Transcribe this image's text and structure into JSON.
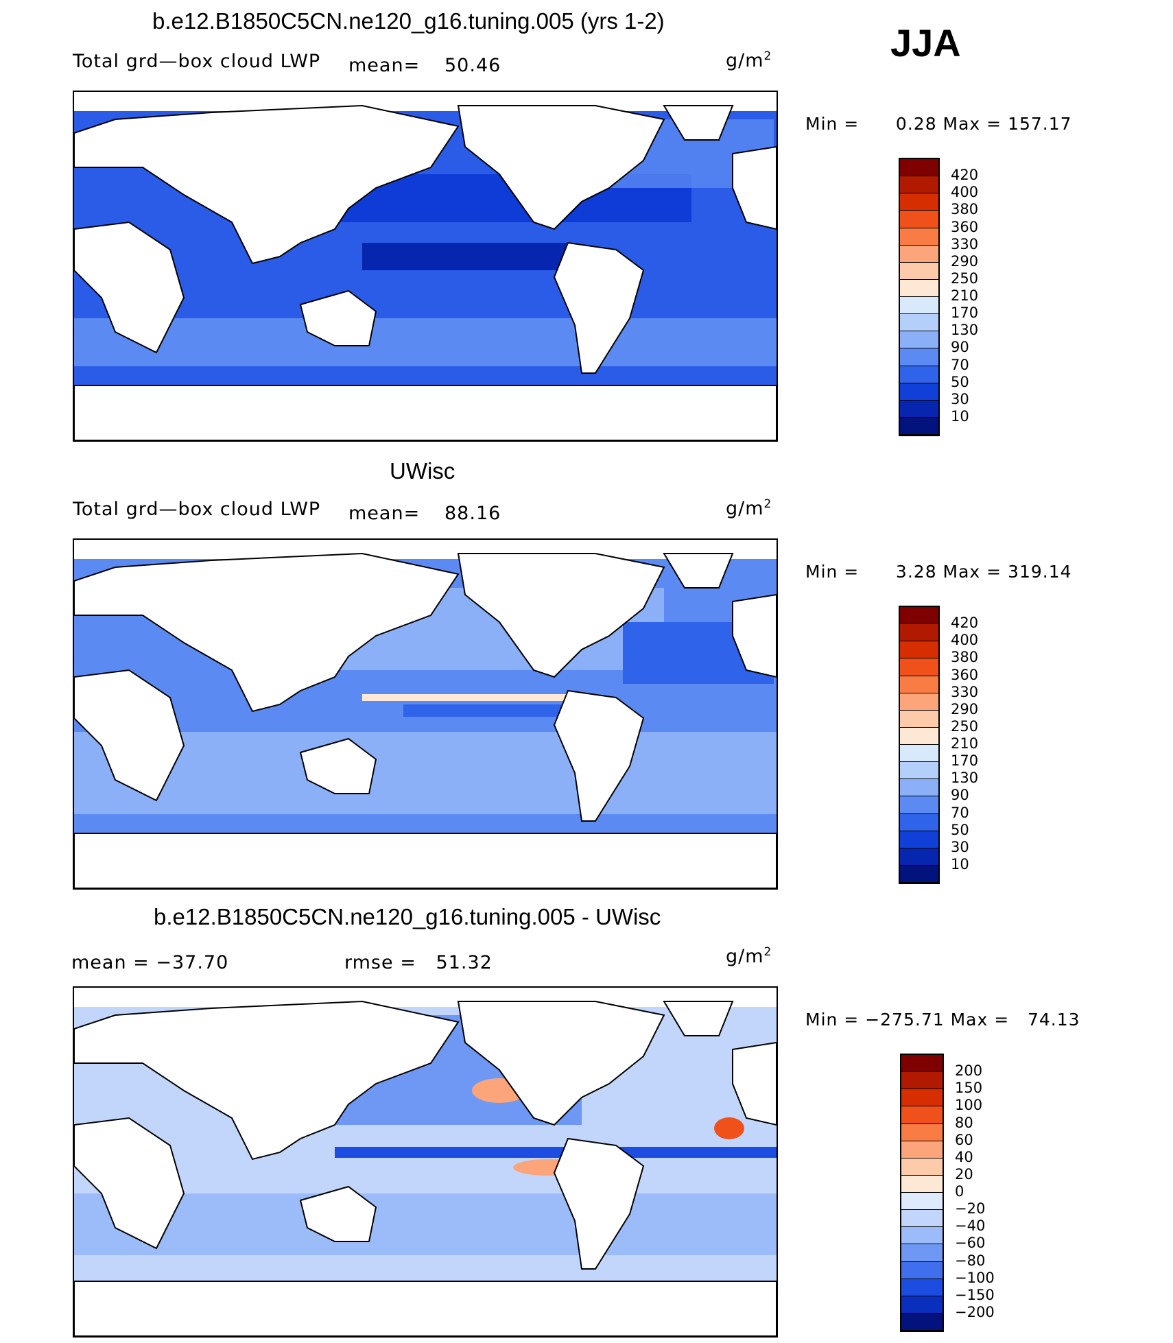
{
  "season": "JJA",
  "chart_data": [
    {
      "type": "heatmap",
      "title": "b.e12.B1850C5CN.ne120_g16.tuning.005 (yrs 1-2)",
      "variable": "Total grd—box cloud LWP",
      "mean_label": "mean=",
      "mean": "50.46",
      "units": "g/m",
      "units_exp": "2",
      "minmax_label": "Min =      0.28 Max = 157.17",
      "min": 0.28,
      "max": 157.17,
      "colorbar_levels": [
        "420",
        "400",
        "380",
        "360",
        "330",
        "290",
        "250",
        "210",
        "170",
        "130",
        "90",
        "70",
        "50",
        "30",
        "10"
      ],
      "colorbar_colors": [
        "#7f0000",
        "#b21a00",
        "#d62e00",
        "#f0501a",
        "#fa7c45",
        "#fca57a",
        "#fdcbaa",
        "#fde8d6",
        "#d7e9fb",
        "#b3cffa",
        "#8bb0f7",
        "#5b8af2",
        "#2f63ea",
        "#1140d8",
        "#0726b0",
        "#02137e"
      ],
      "field_colors": {
        "land": "#ffffff",
        "ocean_low": "#0f3bd6",
        "ocean_mid": "#2a5ce8",
        "ocean_high": "#5b8af2",
        "polar": "#8bb0f7"
      }
    },
    {
      "type": "heatmap",
      "title": "UWisc",
      "variable": "Total grd—box cloud LWP",
      "mean_label": "mean=",
      "mean": "88.16",
      "units": "g/m",
      "units_exp": "2",
      "minmax_label": "Min =      3.28 Max = 319.14",
      "min": 3.28,
      "max": 319.14,
      "colorbar_levels": [
        "420",
        "400",
        "380",
        "360",
        "330",
        "290",
        "250",
        "210",
        "170",
        "130",
        "90",
        "70",
        "50",
        "30",
        "10"
      ],
      "colorbar_colors": [
        "#7f0000",
        "#b21a00",
        "#d62e00",
        "#f0501a",
        "#fa7c45",
        "#fca57a",
        "#fdcbaa",
        "#fde8d6",
        "#d7e9fb",
        "#b3cffa",
        "#8bb0f7",
        "#5b8af2",
        "#2f63ea",
        "#1140d8",
        "#0726b0",
        "#02137e"
      ],
      "field_colors": {
        "land": "#ffffff",
        "ocean_low": "#2f63ea",
        "ocean_mid": "#5b8af2",
        "ocean_high": "#8bb0f7",
        "itcz": "#fde8d6"
      }
    },
    {
      "type": "heatmap",
      "title": "b.e12.B1850C5CN.ne120_g16.tuning.005 - UWisc",
      "mean_label": "mean = −37.70",
      "mean": "-37.70",
      "rmse_label": "rmse =   51.32",
      "rmse": "51.32",
      "units": "g/m",
      "units_exp": "2",
      "minmax_label": "Min = −275.71 Max =   74.13",
      "min": -275.71,
      "max": 74.13,
      "colorbar_levels": [
        "200",
        "150",
        "100",
        "80",
        "60",
        "40",
        "20",
        "0",
        "−20",
        "−40",
        "−60",
        "−80",
        "−100",
        "−150",
        "−200"
      ],
      "colorbar_colors": [
        "#7f0000",
        "#b21a00",
        "#d62e00",
        "#f0501a",
        "#fa7c45",
        "#fca57a",
        "#fdcbaa",
        "#fde8d6",
        "#dfeafc",
        "#c2d6fb",
        "#9bbcf8",
        "#6f98f4",
        "#3f6fec",
        "#1c4ce0",
        "#0a2fbd",
        "#02137e"
      ],
      "field_colors": {
        "land": "#ffffff",
        "ocean_low": "#c2d6fb",
        "ocean_mid": "#9bbcf8",
        "itcz": "#1c4ce0",
        "positive": "#fca57a"
      }
    }
  ]
}
